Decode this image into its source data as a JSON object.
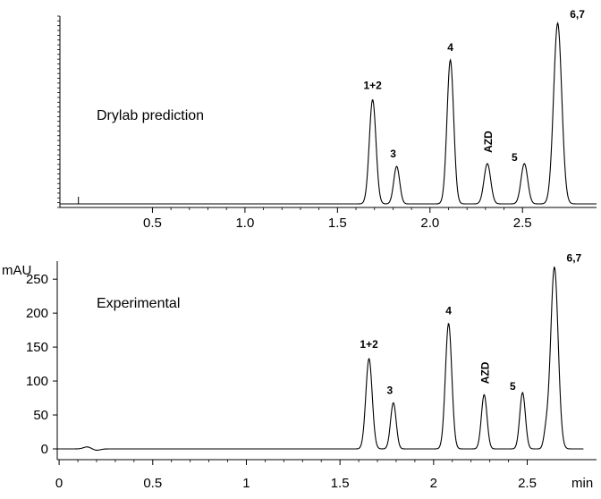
{
  "chart_data": [
    {
      "type": "line",
      "title": "",
      "xlabel": "",
      "ylabel": "",
      "xlim": [
        -0.0,
        2.9
      ],
      "ylim": [
        0,
        270
      ],
      "annotation_text": "Drylab prediction",
      "xticks": [
        0.5,
        1.0,
        1.5,
        2.0,
        2.5
      ],
      "xtick_labels": [
        "0.5",
        "1.0",
        "1.5",
        "2.0",
        "2.5"
      ],
      "yticks": [],
      "baseline": 0,
      "peaks": [
        {
          "label": "1+2",
          "x": 1.69,
          "y": 150,
          "width": 0.018
        },
        {
          "label": "3",
          "x": 1.82,
          "y": 54,
          "width": 0.016
        },
        {
          "label": "4",
          "x": 2.11,
          "y": 207,
          "width": 0.018
        },
        {
          "label": "AZD",
          "x": 2.31,
          "y": 58,
          "width": 0.018
        },
        {
          "label": "5",
          "x": 2.51,
          "y": 58,
          "width": 0.018
        },
        {
          "label": "6,7",
          "x": 2.69,
          "y": 260,
          "width": 0.022
        }
      ]
    },
    {
      "type": "line",
      "title": "",
      "xlabel": "min",
      "ylabel": "mAU",
      "xlim": [
        -0.01,
        2.87
      ],
      "ylim": [
        0,
        270
      ],
      "annotation_text": "Experimental",
      "xticks": [
        0,
        0.5,
        1,
        1.5,
        2,
        2.5
      ],
      "xtick_labels": [
        "0",
        "0.5",
        "1",
        "1.5",
        "2",
        "2.5"
      ],
      "yticks": [
        0,
        50,
        100,
        150,
        200,
        250
      ],
      "ytick_labels": [
        "0",
        "50",
        "100",
        "150",
        "200",
        "250"
      ],
      "baseline": 0,
      "peaks": [
        {
          "label": "1+2",
          "x": 1.655,
          "y": 133,
          "width": 0.017
        },
        {
          "label": "3",
          "x": 1.785,
          "y": 68,
          "width": 0.015
        },
        {
          "label": "4",
          "x": 2.08,
          "y": 185,
          "width": 0.017
        },
        {
          "label": "AZD",
          "x": 2.27,
          "y": 80,
          "width": 0.015
        },
        {
          "label": "5",
          "x": 2.475,
          "y": 83,
          "width": 0.015
        },
        {
          "label": "6,7",
          "x": 2.645,
          "y": 268,
          "width": 0.02
        }
      ]
    }
  ]
}
